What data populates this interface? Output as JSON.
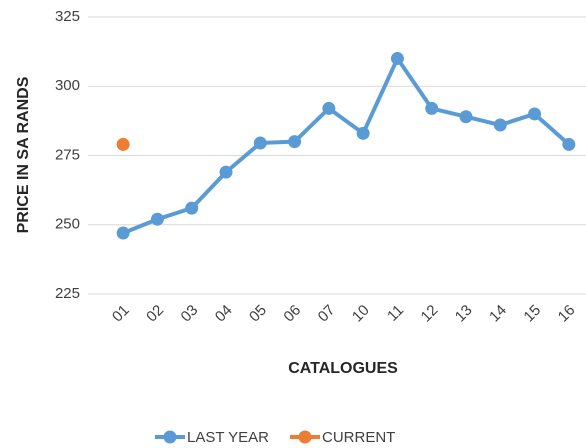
{
  "chart_data": {
    "type": "line",
    "x_label": "CATALOGUES",
    "y_label": "PRICE IN SA RANDS",
    "categories": [
      "01",
      "02",
      "03",
      "04",
      "05",
      "06",
      "07",
      "10",
      "11",
      "12",
      "13",
      "14",
      "15",
      "16"
    ],
    "series": [
      {
        "name": "LAST YEAR",
        "color": "#5b9bd5",
        "values": [
          247,
          252,
          256,
          269,
          279.5,
          280,
          292,
          283,
          310,
          292,
          289,
          286,
          290,
          279
        ]
      },
      {
        "name": "CURRENT",
        "color": "#ed7d31",
        "values": [
          279,
          null,
          null,
          null,
          null,
          null,
          null,
          null,
          null,
          null,
          null,
          null,
          null,
          null
        ]
      }
    ],
    "ylim": [
      225,
      325
    ],
    "yticks": [
      225,
      250,
      275,
      300,
      325
    ],
    "grid": true,
    "legend": "bottom"
  }
}
